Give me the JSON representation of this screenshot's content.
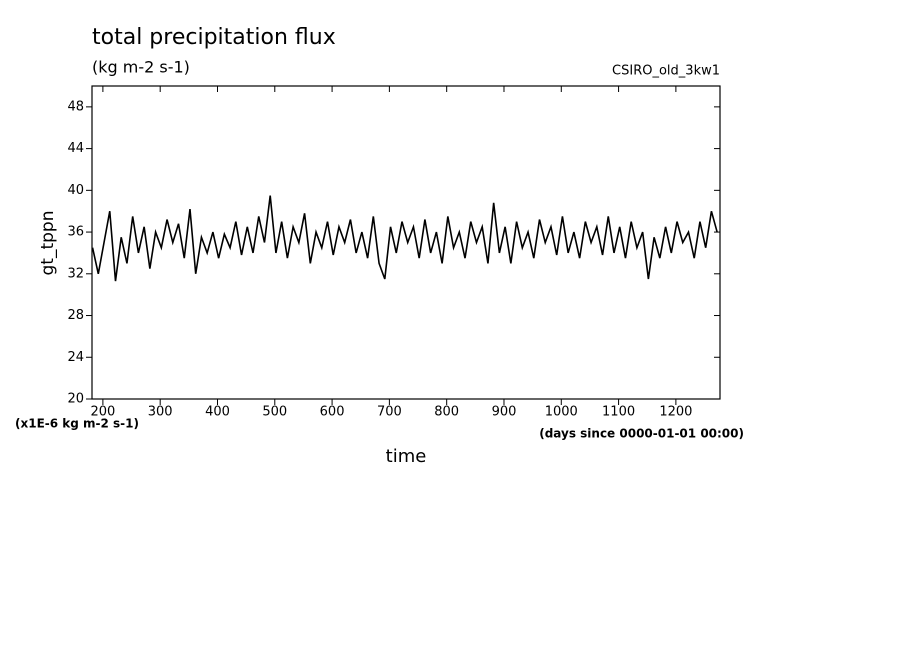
{
  "chart_data": {
    "type": "line",
    "title": "total precipitation flux",
    "subtitle": "(kg m-2 s-1)",
    "dataset": "CSIRO_old_3kw1",
    "y_label": "gt_tppn",
    "y_units": "(x1E-6 kg m-2 s-1)",
    "x_label": "time",
    "x_units": "(days since 0000-01-01 00:00)",
    "xlim": [
      181,
      1277
    ],
    "ylim": [
      20,
      50
    ],
    "xticks": [
      200,
      300,
      400,
      500,
      600,
      700,
      800,
      900,
      1000,
      1100,
      1200
    ],
    "yticks": [
      20,
      24,
      28,
      32,
      36,
      40,
      44,
      48
    ],
    "series": [
      {
        "name": "gt_tppn",
        "color": "#000000",
        "x": [
          182,
          192,
          202,
          212,
          222,
          232,
          242,
          252,
          262,
          272,
          282,
          292,
          302,
          312,
          322,
          332,
          342,
          352,
          362,
          372,
          382,
          392,
          402,
          412,
          422,
          432,
          442,
          452,
          462,
          472,
          482,
          492,
          502,
          512,
          522,
          532,
          542,
          552,
          562,
          572,
          582,
          592,
          602,
          612,
          622,
          632,
          642,
          652,
          662,
          672,
          682,
          692,
          702,
          712,
          722,
          732,
          742,
          752,
          762,
          772,
          782,
          792,
          802,
          812,
          822,
          832,
          842,
          852,
          862,
          872,
          882,
          892,
          902,
          912,
          922,
          932,
          942,
          952,
          962,
          972,
          982,
          992,
          1002,
          1012,
          1022,
          1032,
          1042,
          1052,
          1062,
          1072,
          1082,
          1092,
          1102,
          1112,
          1122,
          1132,
          1142,
          1152,
          1162,
          1172,
          1182,
          1192,
          1202,
          1212,
          1222,
          1232,
          1242,
          1252,
          1262,
          1272
        ],
        "values": [
          34.5,
          32.0,
          35.0,
          38.0,
          31.3,
          35.5,
          33.0,
          37.5,
          34.0,
          36.5,
          32.5,
          36.0,
          34.5,
          37.2,
          35.0,
          36.8,
          33.5,
          38.2,
          32.0,
          35.5,
          34.0,
          36.0,
          33.5,
          35.8,
          34.5,
          37.0,
          33.8,
          36.5,
          34.0,
          37.5,
          35.0,
          39.5,
          34.0,
          37.0,
          33.5,
          36.5,
          35.0,
          37.8,
          33.0,
          36.0,
          34.5,
          37.0,
          33.8,
          36.5,
          35.0,
          37.2,
          34.0,
          36.0,
          33.5,
          37.5,
          33.0,
          31.5,
          36.5,
          34.0,
          37.0,
          35.0,
          36.5,
          33.5,
          37.2,
          34.0,
          36.0,
          33.0,
          37.5,
          34.5,
          36.0,
          33.5,
          37.0,
          35.0,
          36.5,
          33.0,
          38.8,
          34.0,
          36.5,
          33.0,
          37.0,
          34.5,
          36.0,
          33.5,
          37.2,
          35.0,
          36.5,
          33.8,
          37.5,
          34.0,
          36.0,
          33.5,
          37.0,
          35.0,
          36.5,
          33.8,
          37.5,
          34.0,
          36.5,
          33.5,
          37.0,
          34.5,
          36.0,
          31.5,
          35.5,
          33.5,
          36.5,
          34.0,
          37.0,
          35.0,
          36.0,
          33.5,
          37.0,
          34.5,
          38.0,
          36.0
        ]
      }
    ]
  }
}
